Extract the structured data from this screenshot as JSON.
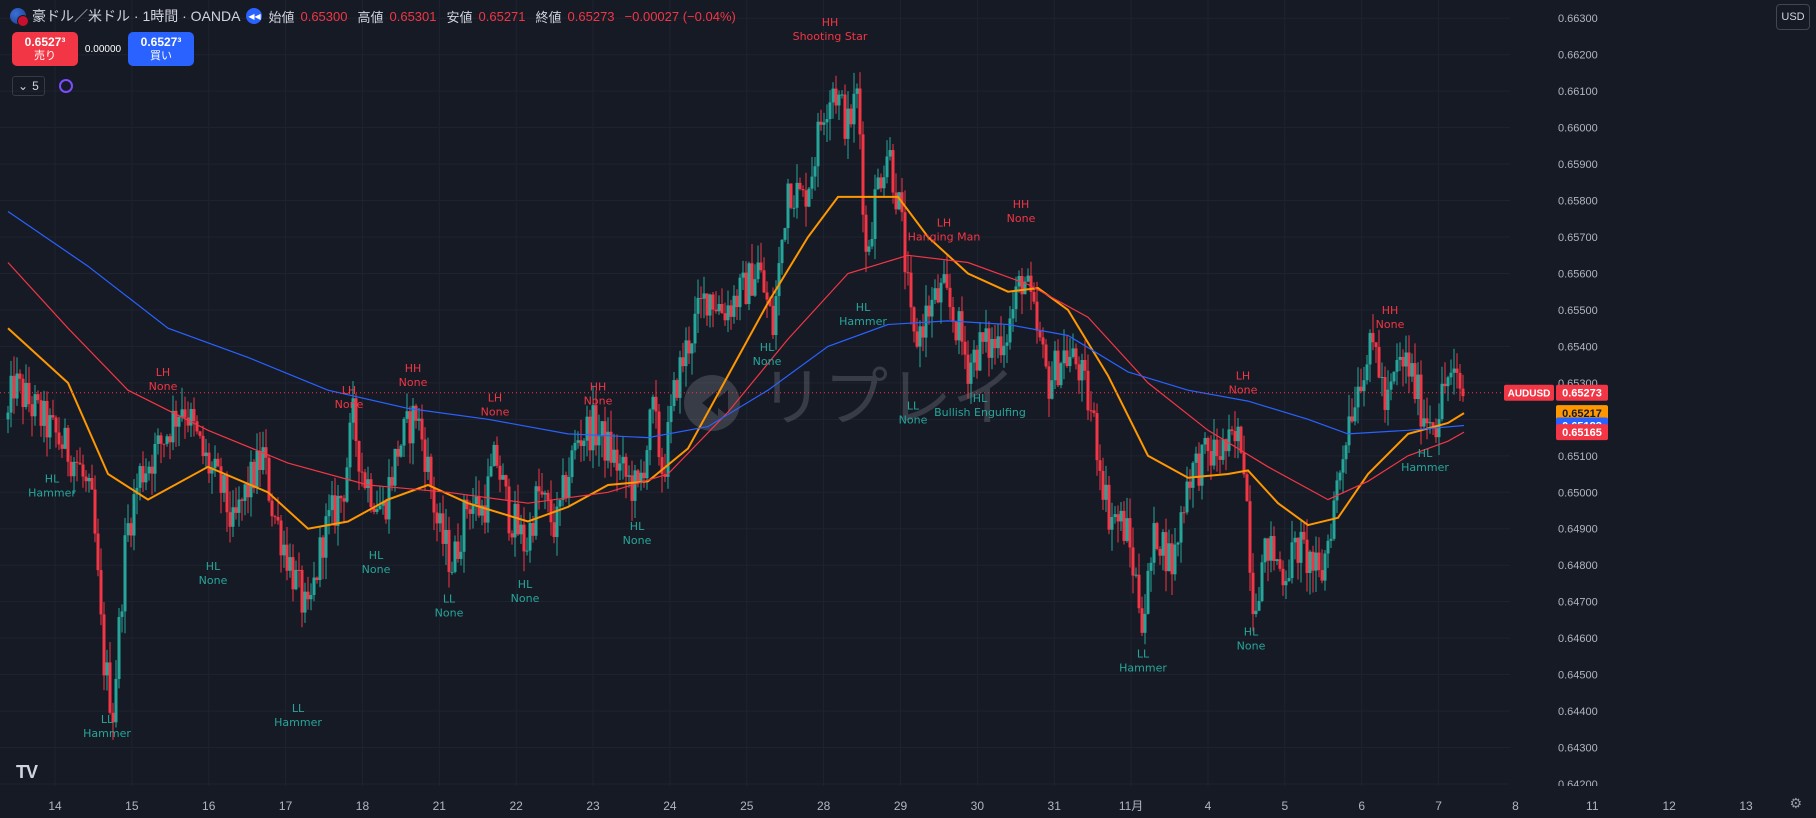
{
  "header": {
    "symbol": "豪ドル／米ドル · 1時間 · OANDA",
    "open_label": "始値",
    "open": "0.65300",
    "high_label": "高値",
    "high": "0.65301",
    "low_label": "安値",
    "low": "0.65271",
    "close_label": "終値",
    "close": "0.65273",
    "change": "−0.00027 (−0.04%)"
  },
  "trade": {
    "sell_price": "0.6527³",
    "sell_label": "売り",
    "spread": "0.00000",
    "buy_price": "0.6527³",
    "buy_label": "買い"
  },
  "indicators": {
    "collapse_count": "5"
  },
  "currency": "USD",
  "watermark": "リプレイ",
  "logo": "TV",
  "colors": {
    "up": "#26a69a",
    "down": "#f23645",
    "ma_fast": "#ff9800",
    "ma_mid": "#f23645",
    "ma_slow": "#2962ff",
    "label_high": "#f23645",
    "label_low": "#26a69a"
  },
  "chart_data": {
    "type": "candlestick",
    "instrument": "AUDUSD",
    "timeframe": "1H",
    "ylim": [
      0.642,
      0.6635
    ],
    "y_ticks": [
      "0.66300",
      "0.66200",
      "0.66100",
      "0.66000",
      "0.65900",
      "0.65800",
      "0.65700",
      "0.65600",
      "0.65500",
      "0.65400",
      "0.65300",
      "0.65200",
      "0.65100",
      "0.65000",
      "0.64900",
      "0.64800",
      "0.64700",
      "0.64600",
      "0.64500",
      "0.64400",
      "0.64300",
      "0.64200"
    ],
    "x_ticks": [
      "14",
      "15",
      "16",
      "17",
      "18",
      "21",
      "22",
      "23",
      "24",
      "25",
      "28",
      "29",
      "30",
      "31",
      "11月",
      "4",
      "5",
      "6",
      "7",
      "8",
      "11",
      "12",
      "13"
    ],
    "price_path": [
      [
        0,
        0.652
      ],
      [
        5,
        0.653
      ],
      [
        40,
        0.6518
      ],
      [
        70,
        0.6508
      ],
      [
        85,
        0.6495
      ],
      [
        95,
        0.6455
      ],
      [
        105,
        0.644
      ],
      [
        118,
        0.6488
      ],
      [
        132,
        0.6505
      ],
      [
        150,
        0.6512
      ],
      [
        175,
        0.6525
      ],
      [
        195,
        0.651
      ],
      [
        215,
        0.65
      ],
      [
        225,
        0.649
      ],
      [
        238,
        0.65
      ],
      [
        255,
        0.651
      ],
      [
        265,
        0.6495
      ],
      [
        285,
        0.6478
      ],
      [
        300,
        0.6465
      ],
      [
        315,
        0.6488
      ],
      [
        335,
        0.65
      ],
      [
        345,
        0.652
      ],
      [
        355,
        0.6505
      ],
      [
        375,
        0.6495
      ],
      [
        390,
        0.6512
      ],
      [
        408,
        0.6522
      ],
      [
        418,
        0.651
      ],
      [
        430,
        0.649
      ],
      [
        445,
        0.648
      ],
      [
        460,
        0.6498
      ],
      [
        475,
        0.6495
      ],
      [
        488,
        0.651
      ],
      [
        500,
        0.6495
      ],
      [
        518,
        0.6485
      ],
      [
        530,
        0.65
      ],
      [
        548,
        0.649
      ],
      [
        560,
        0.6505
      ],
      [
        570,
        0.6515
      ],
      [
        585,
        0.6518
      ],
      [
        600,
        0.6512
      ],
      [
        615,
        0.6505
      ],
      [
        630,
        0.65
      ],
      [
        645,
        0.6522
      ],
      [
        655,
        0.6505
      ],
      [
        668,
        0.653
      ],
      [
        685,
        0.6545
      ],
      [
        700,
        0.6555
      ],
      [
        715,
        0.655
      ],
      [
        735,
        0.6555
      ],
      [
        750,
        0.6562
      ],
      [
        765,
        0.6545
      ],
      [
        780,
        0.6585
      ],
      [
        795,
        0.658
      ],
      [
        805,
        0.659
      ],
      [
        815,
        0.6605
      ],
      [
        825,
        0.6612
      ],
      [
        840,
        0.66
      ],
      [
        850,
        0.661
      ],
      [
        858,
        0.6565
      ],
      [
        870,
        0.6585
      ],
      [
        880,
        0.6595
      ],
      [
        893,
        0.6575
      ],
      [
        905,
        0.654
      ],
      [
        920,
        0.655
      ],
      [
        935,
        0.6555
      ],
      [
        950,
        0.6545
      ],
      [
        960,
        0.6535
      ],
      [
        972,
        0.654
      ],
      [
        985,
        0.654
      ],
      [
        1000,
        0.6545
      ],
      [
        1015,
        0.656
      ],
      [
        1028,
        0.6545
      ],
      [
        1040,
        0.653
      ],
      [
        1055,
        0.6538
      ],
      [
        1070,
        0.6535
      ],
      [
        1085,
        0.652
      ],
      [
        1100,
        0.6495
      ],
      [
        1118,
        0.649
      ],
      [
        1135,
        0.6465
      ],
      [
        1148,
        0.649
      ],
      [
        1165,
        0.648
      ],
      [
        1180,
        0.6505
      ],
      [
        1200,
        0.651
      ],
      [
        1220,
        0.6512
      ],
      [
        1235,
        0.6515
      ],
      [
        1245,
        0.647
      ],
      [
        1260,
        0.6485
      ],
      [
        1275,
        0.6478
      ],
      [
        1290,
        0.6485
      ],
      [
        1305,
        0.648
      ],
      [
        1312,
        0.6475
      ],
      [
        1325,
        0.6495
      ],
      [
        1340,
        0.652
      ],
      [
        1355,
        0.6535
      ],
      [
        1368,
        0.654
      ],
      [
        1378,
        0.6522
      ],
      [
        1390,
        0.6535
      ],
      [
        1400,
        0.6535
      ],
      [
        1415,
        0.6522
      ],
      [
        1428,
        0.652
      ],
      [
        1440,
        0.6532
      ],
      [
        1455,
        0.6527
      ]
    ],
    "moving_averages": [
      {
        "name": "MA fast",
        "color": "#ff9800",
        "last": "0.65217",
        "points": [
          [
            0,
            0.6545
          ],
          [
            60,
            0.653
          ],
          [
            100,
            0.6505
          ],
          [
            140,
            0.6498
          ],
          [
            200,
            0.6507
          ],
          [
            260,
            0.65
          ],
          [
            300,
            0.649
          ],
          [
            340,
            0.6492
          ],
          [
            380,
            0.6498
          ],
          [
            420,
            0.6502
          ],
          [
            460,
            0.6497
          ],
          [
            520,
            0.6492
          ],
          [
            560,
            0.6496
          ],
          [
            600,
            0.6502
          ],
          [
            640,
            0.6503
          ],
          [
            680,
            0.6512
          ],
          [
            720,
            0.6532
          ],
          [
            760,
            0.6552
          ],
          [
            800,
            0.657
          ],
          [
            830,
            0.6581
          ],
          [
            860,
            0.6581
          ],
          [
            890,
            0.6581
          ],
          [
            920,
            0.657
          ],
          [
            960,
            0.656
          ],
          [
            1000,
            0.6555
          ],
          [
            1030,
            0.6556
          ],
          [
            1060,
            0.655
          ],
          [
            1100,
            0.6532
          ],
          [
            1140,
            0.651
          ],
          [
            1180,
            0.6504
          ],
          [
            1220,
            0.6505
          ],
          [
            1240,
            0.6506
          ],
          [
            1270,
            0.6497
          ],
          [
            1300,
            0.6491
          ],
          [
            1330,
            0.6493
          ],
          [
            1360,
            0.6505
          ],
          [
            1400,
            0.6516
          ],
          [
            1440,
            0.6519
          ],
          [
            1456,
            0.65217
          ]
        ]
      },
      {
        "name": "MA mid",
        "color": "#f23645",
        "last": "0.65165",
        "points": [
          [
            0,
            0.6563
          ],
          [
            60,
            0.6545
          ],
          [
            120,
            0.6528
          ],
          [
            200,
            0.6517
          ],
          [
            280,
            0.6508
          ],
          [
            360,
            0.6502
          ],
          [
            440,
            0.65
          ],
          [
            520,
            0.6497
          ],
          [
            600,
            0.65
          ],
          [
            660,
            0.6505
          ],
          [
            720,
            0.6522
          ],
          [
            780,
            0.6542
          ],
          [
            840,
            0.656
          ],
          [
            900,
            0.6565
          ],
          [
            960,
            0.6563
          ],
          [
            1020,
            0.6557
          ],
          [
            1080,
            0.6548
          ],
          [
            1140,
            0.653
          ],
          [
            1200,
            0.6517
          ],
          [
            1260,
            0.6507
          ],
          [
            1320,
            0.6498
          ],
          [
            1360,
            0.6503
          ],
          [
            1400,
            0.651
          ],
          [
            1440,
            0.6514
          ],
          [
            1456,
            0.65165
          ]
        ]
      },
      {
        "name": "MA slow",
        "color": "#2962ff",
        "last": "0.65183",
        "points": [
          [
            0,
            0.6577
          ],
          [
            80,
            0.6562
          ],
          [
            160,
            0.6545
          ],
          [
            240,
            0.6537
          ],
          [
            320,
            0.6528
          ],
          [
            400,
            0.6523
          ],
          [
            480,
            0.652
          ],
          [
            560,
            0.6516
          ],
          [
            640,
            0.6515
          ],
          [
            700,
            0.6518
          ],
          [
            760,
            0.6528
          ],
          [
            820,
            0.654
          ],
          [
            880,
            0.6546
          ],
          [
            940,
            0.6547
          ],
          [
            1000,
            0.6546
          ],
          [
            1060,
            0.6543
          ],
          [
            1120,
            0.6533
          ],
          [
            1180,
            0.6528
          ],
          [
            1240,
            0.6525
          ],
          [
            1300,
            0.652
          ],
          [
            1340,
            0.6516
          ],
          [
            1400,
            0.6517
          ],
          [
            1456,
            0.65183
          ]
        ]
      }
    ],
    "current_price": {
      "label": "AUDUSD",
      "value": "0.65273"
    },
    "annotations": [
      {
        "x": 99,
        "y": 0.644,
        "kind": "low",
        "l1": "LL",
        "l2": "Hammer"
      },
      {
        "x": 44,
        "y": 0.6506,
        "kind": "low",
        "l1": "HL",
        "l2": "Hammer"
      },
      {
        "x": 155,
        "y": 0.6527,
        "kind": "high",
        "l1": "LH",
        "l2": "None"
      },
      {
        "x": 205,
        "y": 0.6482,
        "kind": "low",
        "l1": "HL",
        "l2": "None"
      },
      {
        "x": 290,
        "y": 0.6443,
        "kind": "low",
        "l1": "LL",
        "l2": "Hammer"
      },
      {
        "x": 341,
        "y": 0.6522,
        "kind": "high",
        "l1": "LH",
        "l2": "None"
      },
      {
        "x": 368,
        "y": 0.6485,
        "kind": "low",
        "l1": "HL",
        "l2": "None"
      },
      {
        "x": 405,
        "y": 0.6528,
        "kind": "high",
        "l1": "HH",
        "l2": "None"
      },
      {
        "x": 441,
        "y": 0.6473,
        "kind": "low",
        "l1": "LL",
        "l2": "None"
      },
      {
        "x": 487,
        "y": 0.652,
        "kind": "high",
        "l1": "LH",
        "l2": "None"
      },
      {
        "x": 517,
        "y": 0.6477,
        "kind": "low",
        "l1": "HL",
        "l2": "None"
      },
      {
        "x": 590,
        "y": 0.6523,
        "kind": "high",
        "l1": "HH",
        "l2": "None"
      },
      {
        "x": 629,
        "y": 0.6493,
        "kind": "low",
        "l1": "HL",
        "l2": "None"
      },
      {
        "x": 759,
        "y": 0.6542,
        "kind": "low",
        "l1": "HL",
        "l2": "None"
      },
      {
        "x": 822,
        "y": 0.6623,
        "kind": "high",
        "l1": "HH",
        "l2": "Shooting Star"
      },
      {
        "x": 855,
        "y": 0.6553,
        "kind": "low",
        "l1": "HL",
        "l2": "Hammer"
      },
      {
        "x": 905,
        "y": 0.6526,
        "kind": "low",
        "l1": "LL",
        "l2": "None"
      },
      {
        "x": 936,
        "y": 0.6568,
        "kind": "high",
        "l1": "LH",
        "l2": "Hanging Man"
      },
      {
        "x": 972,
        "y": 0.6528,
        "kind": "low",
        "l1": "HL",
        "l2": "Bullish Engulfing"
      },
      {
        "x": 1013,
        "y": 0.6573,
        "kind": "high",
        "l1": "HH",
        "l2": "None"
      },
      {
        "x": 1135,
        "y": 0.6458,
        "kind": "low",
        "l1": "LL",
        "l2": "Hammer"
      },
      {
        "x": 1235,
        "y": 0.6526,
        "kind": "high",
        "l1": "LH",
        "l2": "None"
      },
      {
        "x": 1243,
        "y": 0.6464,
        "kind": "low",
        "l1": "HL",
        "l2": "None"
      },
      {
        "x": 1382,
        "y": 0.6544,
        "kind": "high",
        "l1": "HH",
        "l2": "None"
      },
      {
        "x": 1417,
        "y": 0.6513,
        "kind": "low",
        "l1": "HL",
        "l2": "Hammer"
      }
    ]
  }
}
